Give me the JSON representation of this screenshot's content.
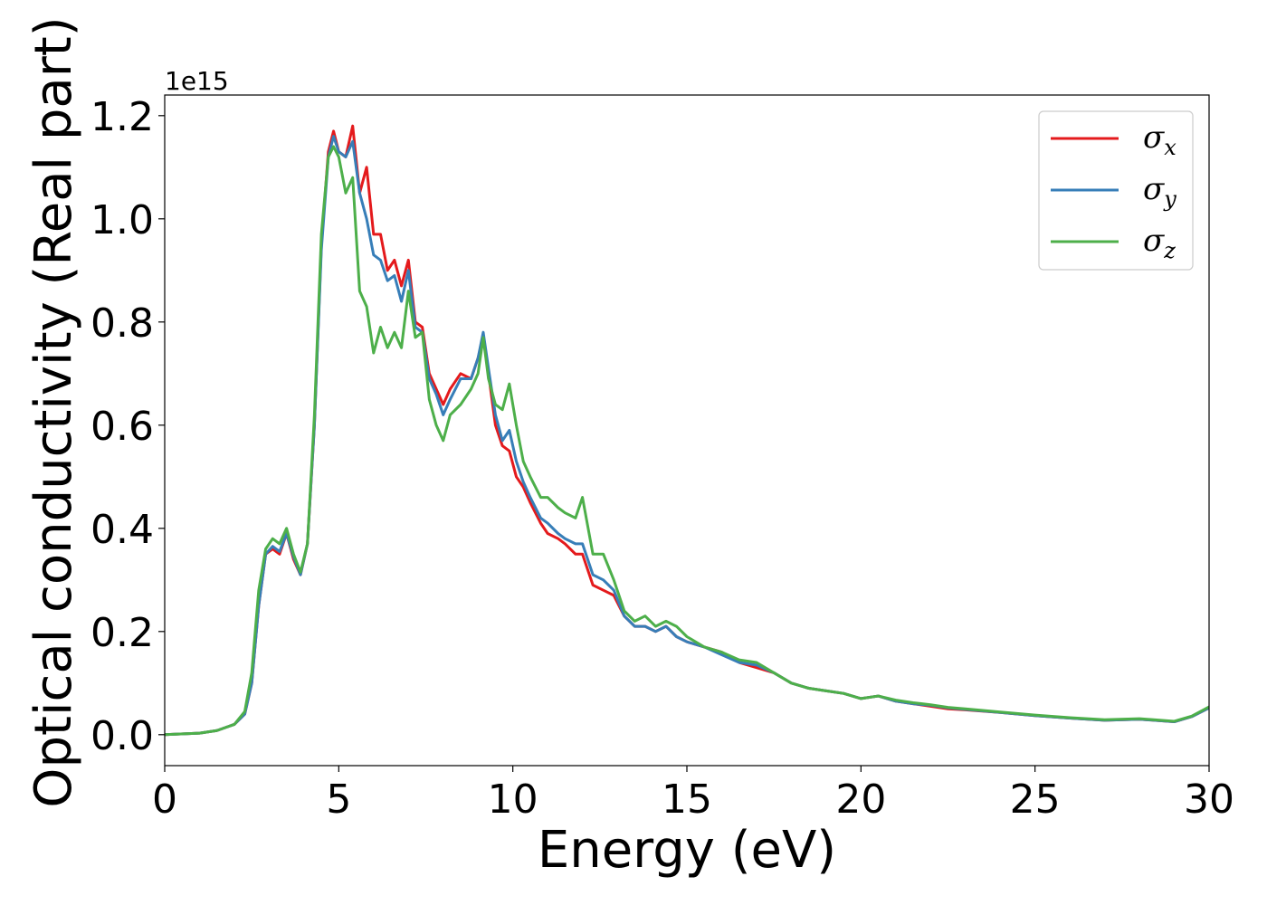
{
  "chart_data": {
    "type": "line",
    "title": "",
    "xlabel": "Energy (eV)",
    "ylabel": "Optical conductivity (Real part)",
    "y_offset_text": "1e15",
    "xlim": [
      0,
      30
    ],
    "ylim": [
      -0.06,
      1.24
    ],
    "x_ticks": [
      0,
      5,
      10,
      15,
      20,
      25,
      30
    ],
    "x_tick_labels": [
      "0",
      "5",
      "10",
      "15",
      "20",
      "25",
      "30"
    ],
    "y_ticks": [
      0.0,
      0.2,
      0.4,
      0.6,
      0.8,
      1.0,
      1.2
    ],
    "y_tick_labels": [
      "0.0",
      "0.2",
      "0.4",
      "0.6",
      "0.8",
      "1.0",
      "1.2"
    ],
    "grid": false,
    "legend_position": "top-right",
    "series": [
      {
        "name": "σx",
        "legend_base": "σ",
        "legend_sub": "x",
        "color": "#e41a1c",
        "x": [
          0,
          1,
          1.5,
          2,
          2.3,
          2.5,
          2.7,
          2.9,
          3.1,
          3.3,
          3.5,
          3.7,
          3.9,
          4.1,
          4.3,
          4.5,
          4.7,
          4.85,
          5.0,
          5.2,
          5.4,
          5.6,
          5.8,
          6.0,
          6.2,
          6.4,
          6.6,
          6.8,
          7.0,
          7.2,
          7.4,
          7.6,
          7.8,
          8.0,
          8.2,
          8.5,
          8.8,
          9.0,
          9.15,
          9.3,
          9.5,
          9.7,
          9.9,
          10.1,
          10.3,
          10.5,
          10.8,
          11.0,
          11.3,
          11.5,
          11.8,
          12.0,
          12.3,
          12.6,
          12.9,
          13.2,
          13.5,
          13.8,
          14.1,
          14.4,
          14.7,
          15.0,
          15.5,
          16.0,
          16.5,
          17.0,
          17.5,
          18.0,
          18.5,
          19.0,
          19.5,
          20.0,
          20.5,
          21.0,
          21.5,
          22.0,
          22.5,
          23.0,
          24.0,
          25.0,
          26.0,
          27.0,
          28.0,
          29.0,
          29.5,
          30.0
        ],
        "values": [
          0.0,
          0.003,
          0.008,
          0.02,
          0.04,
          0.1,
          0.25,
          0.35,
          0.36,
          0.35,
          0.39,
          0.34,
          0.31,
          0.37,
          0.6,
          0.95,
          1.13,
          1.17,
          1.13,
          1.12,
          1.18,
          1.05,
          1.1,
          0.97,
          0.97,
          0.9,
          0.92,
          0.87,
          0.92,
          0.8,
          0.79,
          0.7,
          0.67,
          0.64,
          0.67,
          0.7,
          0.69,
          0.73,
          0.77,
          0.7,
          0.6,
          0.56,
          0.55,
          0.5,
          0.48,
          0.45,
          0.41,
          0.39,
          0.38,
          0.37,
          0.35,
          0.35,
          0.29,
          0.28,
          0.27,
          0.23,
          0.21,
          0.21,
          0.2,
          0.21,
          0.19,
          0.18,
          0.17,
          0.16,
          0.14,
          0.13,
          0.12,
          0.1,
          0.09,
          0.085,
          0.08,
          0.07,
          0.075,
          0.065,
          0.06,
          0.055,
          0.05,
          0.048,
          0.043,
          0.037,
          0.032,
          0.028,
          0.03,
          0.025,
          0.035,
          0.052
        ]
      },
      {
        "name": "σy",
        "legend_base": "σ",
        "legend_sub": "y",
        "color": "#377eb8",
        "x": [
          0,
          1,
          1.5,
          2,
          2.3,
          2.5,
          2.7,
          2.9,
          3.1,
          3.3,
          3.5,
          3.7,
          3.9,
          4.1,
          4.3,
          4.5,
          4.7,
          4.85,
          5.0,
          5.2,
          5.4,
          5.6,
          5.8,
          6.0,
          6.2,
          6.4,
          6.6,
          6.8,
          7.0,
          7.2,
          7.4,
          7.6,
          7.8,
          8.0,
          8.2,
          8.5,
          8.8,
          9.0,
          9.15,
          9.3,
          9.5,
          9.7,
          9.9,
          10.1,
          10.3,
          10.5,
          10.8,
          11.0,
          11.3,
          11.5,
          11.8,
          12.0,
          12.3,
          12.6,
          12.9,
          13.2,
          13.5,
          13.8,
          14.1,
          14.4,
          14.7,
          15.0,
          15.5,
          16.0,
          16.5,
          17.0,
          17.5,
          18.0,
          18.5,
          19.0,
          19.5,
          20.0,
          20.5,
          21.0,
          21.5,
          22.0,
          22.5,
          23.0,
          24.0,
          25.0,
          26.0,
          27.0,
          28.0,
          29.0,
          29.5,
          30.0
        ],
        "values": [
          0.0,
          0.003,
          0.008,
          0.02,
          0.04,
          0.1,
          0.25,
          0.35,
          0.365,
          0.355,
          0.39,
          0.345,
          0.31,
          0.37,
          0.6,
          0.94,
          1.12,
          1.16,
          1.13,
          1.12,
          1.15,
          1.05,
          1.0,
          0.93,
          0.92,
          0.88,
          0.89,
          0.84,
          0.9,
          0.79,
          0.78,
          0.69,
          0.66,
          0.62,
          0.65,
          0.69,
          0.69,
          0.73,
          0.78,
          0.71,
          0.62,
          0.57,
          0.59,
          0.53,
          0.49,
          0.46,
          0.42,
          0.41,
          0.39,
          0.38,
          0.37,
          0.37,
          0.31,
          0.3,
          0.28,
          0.23,
          0.21,
          0.21,
          0.2,
          0.21,
          0.19,
          0.18,
          0.17,
          0.155,
          0.14,
          0.135,
          0.12,
          0.1,
          0.09,
          0.085,
          0.08,
          0.07,
          0.075,
          0.065,
          0.06,
          0.057,
          0.052,
          0.049,
          0.043,
          0.037,
          0.032,
          0.028,
          0.03,
          0.025,
          0.035,
          0.052
        ]
      },
      {
        "name": "σz",
        "legend_base": "σ",
        "legend_sub": "z",
        "color": "#4daf4a",
        "x": [
          0,
          1,
          1.5,
          2,
          2.3,
          2.5,
          2.7,
          2.9,
          3.1,
          3.3,
          3.5,
          3.7,
          3.9,
          4.1,
          4.3,
          4.5,
          4.7,
          4.85,
          5.0,
          5.2,
          5.4,
          5.6,
          5.8,
          6.0,
          6.2,
          6.4,
          6.6,
          6.8,
          7.0,
          7.2,
          7.4,
          7.6,
          7.8,
          8.0,
          8.2,
          8.5,
          8.8,
          9.0,
          9.15,
          9.3,
          9.5,
          9.7,
          9.9,
          10.1,
          10.3,
          10.5,
          10.8,
          11.0,
          11.3,
          11.5,
          11.8,
          12.0,
          12.3,
          12.6,
          12.9,
          13.2,
          13.5,
          13.8,
          14.1,
          14.4,
          14.7,
          15.0,
          15.5,
          16.0,
          16.5,
          17.0,
          17.5,
          18.0,
          18.5,
          19.0,
          19.5,
          20.0,
          20.5,
          21.0,
          21.5,
          22.0,
          22.5,
          23.0,
          24.0,
          25.0,
          26.0,
          27.0,
          28.0,
          29.0,
          29.5,
          30.0
        ],
        "values": [
          0.0,
          0.003,
          0.008,
          0.02,
          0.045,
          0.12,
          0.28,
          0.36,
          0.38,
          0.37,
          0.4,
          0.35,
          0.315,
          0.37,
          0.62,
          0.97,
          1.12,
          1.14,
          1.12,
          1.05,
          1.08,
          0.86,
          0.83,
          0.74,
          0.79,
          0.75,
          0.78,
          0.75,
          0.86,
          0.77,
          0.78,
          0.65,
          0.6,
          0.57,
          0.62,
          0.64,
          0.67,
          0.7,
          0.77,
          0.69,
          0.64,
          0.63,
          0.68,
          0.6,
          0.53,
          0.5,
          0.46,
          0.46,
          0.44,
          0.43,
          0.42,
          0.46,
          0.35,
          0.35,
          0.3,
          0.24,
          0.22,
          0.23,
          0.21,
          0.22,
          0.21,
          0.19,
          0.17,
          0.16,
          0.145,
          0.14,
          0.12,
          0.1,
          0.09,
          0.085,
          0.08,
          0.07,
          0.075,
          0.067,
          0.062,
          0.058,
          0.053,
          0.05,
          0.044,
          0.038,
          0.033,
          0.029,
          0.031,
          0.026,
          0.036,
          0.054
        ]
      }
    ]
  }
}
